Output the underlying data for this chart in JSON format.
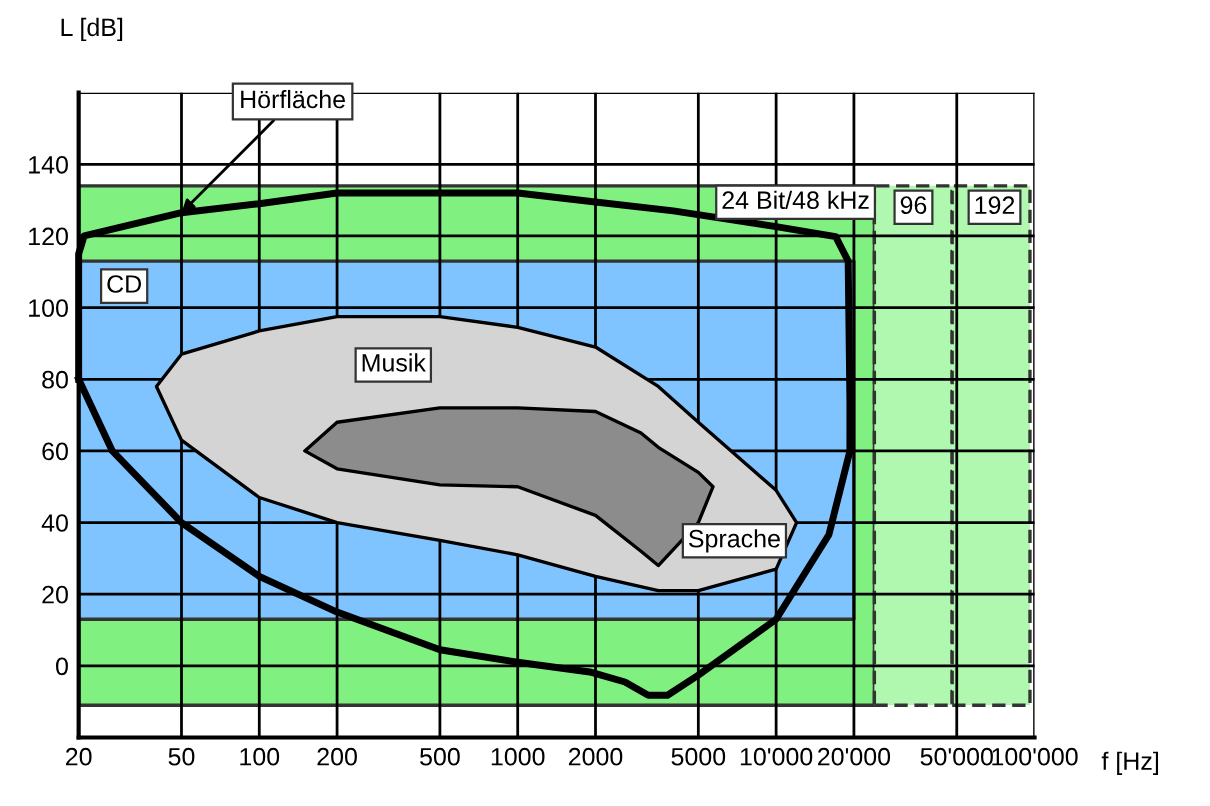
{
  "chart_data": {
    "type": "area",
    "xlabel": "f [Hz]",
    "ylabel": "L [dB]",
    "log": "x",
    "grid": true,
    "xlim": [
      20,
      100000
    ],
    "xticks": [
      20,
      50,
      100,
      200,
      500,
      1000,
      2000,
      5000,
      {
        "value": 10000,
        "label": "10'000"
      },
      {
        "value": 20000,
        "label": "20'000"
      },
      {
        "value": 50000,
        "label": "50'000"
      },
      {
        "value": 100000,
        "label": "100'000"
      }
    ],
    "ylim": [
      -20,
      160
    ],
    "yticks": [
      {
        "value": -20,
        "label": null
      },
      0,
      20,
      40,
      60,
      80,
      100,
      120,
      140,
      {
        "value": 160,
        "label": null
      }
    ],
    "series": [
      {
        "color": "#80f080",
        "line_style": "solid",
        "x": [
          20,
          24000,
          24000,
          20,
          20
        ],
        "values": [
          -11,
          -11,
          134,
          134,
          -11
        ]
      },
      {
        "color": "#b0f8b0",
        "line_style": "dashed",
        "x": [
          24000,
          48000,
          48000,
          24000,
          24000
        ],
        "values": [
          -11,
          -11,
          134,
          134,
          -11
        ]
      },
      {
        "color": "#b0f8b0",
        "line_style": "dashed",
        "x": [
          48000,
          96000,
          96000,
          48000,
          48000
        ],
        "values": [
          -11,
          -11,
          134,
          134,
          -11
        ]
      },
      {
        "color": "#80c4ff",
        "line_style": "solid",
        "x": [
          20,
          20000,
          20000,
          20,
          20
        ],
        "values": [
          13,
          13,
          113,
          113,
          13
        ]
      },
      {
        "color": "#d4d4d4",
        "line_style": "solid",
        "x": [
          40,
          50,
          100,
          200,
          500,
          1000,
          2000,
          3500,
          5000,
          10000,
          12000,
          10000,
          5000,
          3500,
          2000,
          1000,
          500,
          200,
          100,
          50,
          40
        ],
        "values": [
          78,
          87,
          93.5,
          97.5,
          97.5,
          94.5,
          89,
          78,
          68,
          49,
          40,
          27,
          21,
          21,
          25,
          31,
          35,
          40,
          47,
          63,
          78
        ]
      },
      {
        "color": "#8c8c8c",
        "line_style": "solid",
        "x": [
          150,
          200,
          500,
          1000,
          2000,
          3000,
          3500,
          5000,
          5700,
          5000,
          3500,
          3000,
          2000,
          1000,
          500,
          200,
          150
        ],
        "values": [
          60,
          68,
          72,
          72,
          71,
          65,
          61,
          54,
          50,
          40,
          28,
          32,
          42,
          50,
          50.5,
          55,
          60
        ]
      },
      {
        "type": "line",
        "color": "#000000",
        "line_style": "solid",
        "x": [
          20,
          20,
          21,
          50,
          100,
          200,
          1000,
          2000,
          4000,
          10000,
          17000,
          19000,
          19300,
          19300,
          null,
          20,
          27,
          50,
          100,
          200,
          500,
          1000,
          1900,
          2600,
          3200,
          3800,
          5000,
          10000,
          16000,
          19300
        ],
        "values": [
          80,
          115,
          120,
          126.5,
          129,
          132,
          132,
          129.5,
          127,
          122.6,
          119.8,
          113,
          74,
          60,
          null,
          80,
          60,
          40,
          25,
          15,
          4.5,
          1,
          -1.7,
          -4.5,
          -8.2,
          -8.2,
          -2.6,
          13,
          36.6,
          60
        ]
      }
    ],
    "annotations": [
      {
        "text": "Hörfläche",
        "x": 50,
        "y": 126.5
      },
      {
        "text": "CD",
        "x": 30,
        "y": 106
      },
      {
        "text": "Musik",
        "x": 330,
        "y": 84
      },
      "Sprache",
      "24 Bit/48 kHz",
      {
        "text": "96",
        "x": 34000,
        "y": 128
      },
      {
        "text": "192",
        "x": 70000,
        "y": 128
      }
    ]
  }
}
